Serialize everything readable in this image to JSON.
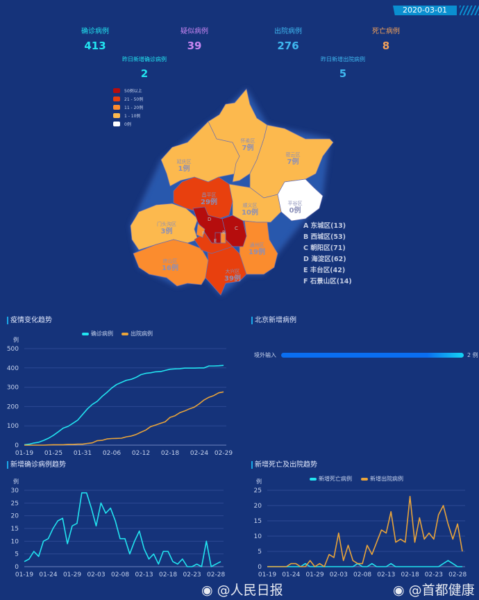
{
  "header": {
    "date": "2020-03-01"
  },
  "stats": [
    {
      "label": "确诊病例",
      "value": "413",
      "color": "#22e4f0"
    },
    {
      "label": "疑似病例",
      "value": "39",
      "color": "#c886f2"
    },
    {
      "label": "出院病例",
      "value": "276",
      "color": "#3fb8f0"
    },
    {
      "label": "死亡病例",
      "value": "8",
      "color": "#f2a15a"
    }
  ],
  "stats2": [
    {
      "label": "昨日新增确诊病例",
      "value": "2",
      "color": "#22e4f0"
    },
    {
      "label": "昨日新增出院病例",
      "value": "5",
      "color": "#3fb8f0"
    }
  ],
  "map": {
    "legend": [
      {
        "label": "50例以上",
        "color": "#b50d0d"
      },
      {
        "label": "21 - 50例",
        "color": "#e8400e"
      },
      {
        "label": "11 - 20例",
        "color": "#fb8c2e"
      },
      {
        "label": "1 - 10例",
        "color": "#fcb94e"
      },
      {
        "label": "0例",
        "color": "#ffffff"
      }
    ],
    "districts": [
      {
        "name": "延庆区",
        "count": "1例"
      },
      {
        "name": "怀柔区",
        "count": "7例"
      },
      {
        "name": "密云区",
        "count": "7例"
      },
      {
        "name": "平谷区",
        "count": "0例"
      },
      {
        "name": "昌平区",
        "count": "29例"
      },
      {
        "name": "顺义区",
        "count": "10例"
      },
      {
        "name": "门头沟区",
        "count": "3例"
      },
      {
        "name": "房山区",
        "count": "16例"
      },
      {
        "name": "大兴区",
        "count": "39例"
      },
      {
        "name": "通州区",
        "count": "19例"
      }
    ],
    "letters": [
      "A",
      "B",
      "C",
      "D",
      "E",
      "F"
    ],
    "side_list": [
      "A 东城区(13)",
      "B 西城区(53)",
      "C 朝阳区(71)",
      "D 海淀区(62)",
      "E 丰台区(42)",
      "F 石景山区(14)"
    ]
  },
  "chart_data": [
    {
      "type": "line",
      "title": "疫情变化趋势",
      "ylabel": "例",
      "ylim": [
        0,
        500
      ],
      "yticks": [
        0,
        100,
        200,
        300,
        400,
        500
      ],
      "xticks": [
        "01-19",
        "01-25",
        "01-31",
        "02-06",
        "02-12",
        "02-18",
        "02-24",
        "02-29"
      ],
      "x_start": "01-19",
      "x_end": "02-29",
      "legend_position": "top",
      "series": [
        {
          "name": "确诊病例",
          "color": "#22e4f0",
          "values": [
            2,
            5,
            11,
            15,
            25,
            36,
            51,
            69,
            88,
            97,
            113,
            130,
            159,
            188,
            211,
            227,
            252,
            273,
            296,
            314,
            325,
            336,
            341,
            351,
            365,
            372,
            375,
            380,
            381,
            387,
            393,
            395,
            396,
            399,
            399,
            399,
            400,
            400,
            410,
            410,
            411,
            413
          ]
        },
        {
          "name": "出院病例",
          "color": "#e9a43a",
          "values": [
            0,
            0,
            0,
            0,
            0,
            1,
            2,
            2,
            2,
            4,
            4,
            5,
            5,
            9,
            12,
            23,
            25,
            32,
            34,
            35,
            36,
            43,
            47,
            55,
            67,
            78,
            96,
            104,
            113,
            121,
            144,
            152,
            168,
            177,
            188,
            197,
            214,
            234,
            248,
            257,
            271,
            276
          ]
        }
      ]
    },
    {
      "type": "bar",
      "title": "北京新增病例",
      "categories": [
        "境外输入"
      ],
      "values": [
        2
      ],
      "value_labels": [
        "2 例"
      ]
    },
    {
      "type": "line",
      "title": "新增确诊病例趋势",
      "ylabel": "例",
      "ylim": [
        0,
        30
      ],
      "yticks": [
        0,
        5,
        10,
        15,
        20,
        25,
        30
      ],
      "xticks": [
        "01-19",
        "01-24",
        "01-29",
        "02-03",
        "02-08",
        "02-13",
        "02-18",
        "02-23",
        "02-28"
      ],
      "x_start": "01-19",
      "x_end": "02-29",
      "series": [
        {
          "color": "#22e4f0",
          "values": [
            2,
            3,
            6,
            4,
            10,
            11,
            15,
            18,
            19,
            9,
            16,
            17,
            29,
            29,
            23,
            16,
            25,
            21,
            23,
            18,
            11,
            11,
            5,
            10,
            14,
            7,
            3,
            5,
            1,
            6,
            6,
            2,
            1,
            3,
            0,
            0,
            1,
            0,
            10,
            0,
            1,
            2
          ]
        }
      ]
    },
    {
      "type": "line",
      "title": "新增死亡及出院趋势",
      "ylabel": "例",
      "ylim": [
        0,
        25
      ],
      "yticks": [
        0,
        5,
        10,
        15,
        20,
        25
      ],
      "xticks": [
        "01-19",
        "01-24",
        "01-29",
        "02-03",
        "02-08",
        "02-13",
        "02-18",
        "02-23",
        "02-28"
      ],
      "x_start": "01-19",
      "x_end": "02-29",
      "legend_position": "top",
      "series": [
        {
          "name": "新增死亡病例",
          "color": "#22e4f0",
          "values": [
            0,
            0,
            0,
            0,
            0,
            0,
            0,
            0,
            1,
            0,
            0,
            0,
            0,
            0,
            0,
            0,
            0,
            0,
            0,
            1,
            0,
            0,
            1,
            0,
            0,
            0,
            1,
            0,
            0,
            0,
            0,
            0,
            0,
            0,
            0,
            0,
            0,
            1,
            2,
            1,
            0,
            0
          ]
        },
        {
          "name": "新增出院病例",
          "color": "#e9a43a",
          "values": [
            0,
            0,
            0,
            0,
            0,
            1,
            1,
            0,
            0,
            2,
            0,
            1,
            0,
            4,
            3,
            11,
            2,
            7,
            2,
            1,
            1,
            7,
            4,
            8,
            12,
            11,
            18,
            8,
            9,
            8,
            23,
            8,
            16,
            9,
            11,
            9,
            17,
            20,
            14,
            9,
            14,
            5
          ]
        }
      ]
    }
  ],
  "watermarks": [
    "@人民日报",
    "@首都健康"
  ]
}
